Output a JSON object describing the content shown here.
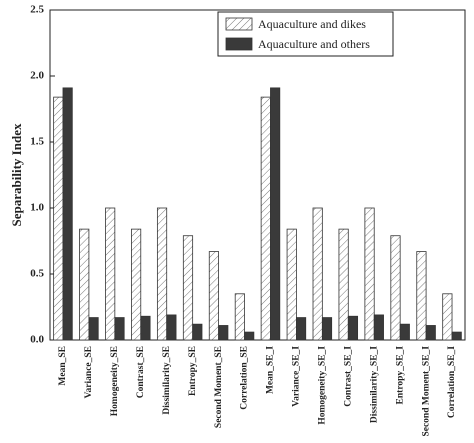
{
  "chart_data": {
    "type": "bar",
    "y_label": "Separability Index",
    "categories": [
      "Mean_SE",
      "Variance_SE",
      "Homogeneity_SE",
      "Contrast_SE",
      "Dissimilarity_SE",
      "Entropy_SE",
      "Second Moment_SE",
      "Correlation_SE",
      "Mean_SE_I",
      "Variance_SE_I",
      "Homogeneity_SE_I",
      "Contrast_SE_I",
      "Dissimilarity_SE_I",
      "Entropy_SE_I",
      "Second Moment_SE_I",
      "Correlation_SE_I"
    ],
    "series": [
      {
        "name": "Aquaculture and dikes",
        "color": "#ffffff",
        "hatch": true,
        "values": [
          1.84,
          0.84,
          1.0,
          0.84,
          1.0,
          0.79,
          0.67,
          0.35,
          1.84,
          0.84,
          1.0,
          0.84,
          1.0,
          0.79,
          0.67,
          0.35
        ]
      },
      {
        "name": "Aquaculture and others",
        "color": "#3a3a3a",
        "hatch": false,
        "values": [
          1.91,
          0.17,
          0.17,
          0.18,
          0.19,
          0.12,
          0.11,
          0.06,
          1.91,
          0.17,
          0.17,
          0.18,
          0.19,
          0.12,
          0.11,
          0.06
        ]
      }
    ],
    "ylim": [
      0,
      2.5
    ],
    "yticks": [
      {
        "value": 0,
        "label": "0.0"
      },
      0.5,
      {
        "value": 1,
        "label": "1.0"
      },
      1.5,
      {
        "value": 2,
        "label": "2.0"
      },
      2.5
    ],
    "legend": "upper right"
  }
}
